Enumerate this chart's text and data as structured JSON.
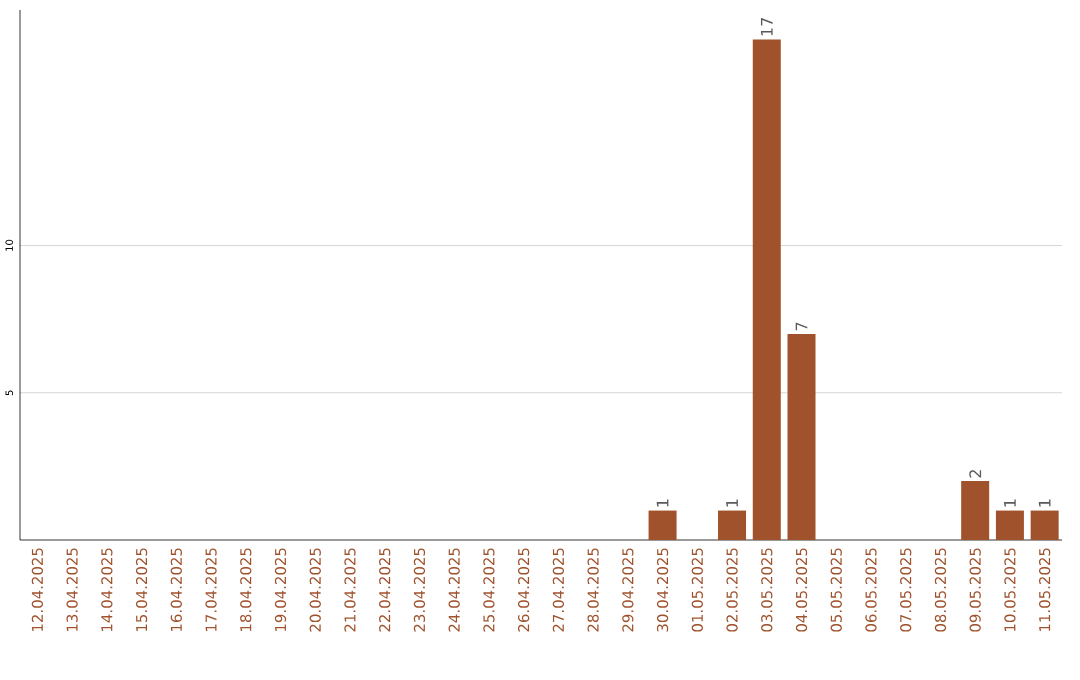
{
  "chart_data": {
    "type": "bar",
    "categories": [
      "12.04.2025",
      "13.04.2025",
      "14.04.2025",
      "15.04.2025",
      "16.04.2025",
      "17.04.2025",
      "18.04.2025",
      "19.04.2025",
      "20.04.2025",
      "21.04.2025",
      "22.04.2025",
      "23.04.2025",
      "24.04.2025",
      "25.04.2025",
      "26.04.2025",
      "27.04.2025",
      "28.04.2025",
      "29.04.2025",
      "30.04.2025",
      "01.05.2025",
      "02.05.2025",
      "03.05.2025",
      "04.05.2025",
      "05.05.2025",
      "06.05.2025",
      "07.05.2025",
      "08.05.2025",
      "09.05.2025",
      "10.05.2025",
      "11.05.2025"
    ],
    "values": [
      0,
      0,
      0,
      0,
      0,
      0,
      0,
      0,
      0,
      0,
      0,
      0,
      0,
      0,
      0,
      0,
      0,
      0,
      1,
      0,
      1,
      17,
      7,
      0,
      0,
      0,
      0,
      2,
      1,
      1
    ],
    "value_labels": [
      null,
      null,
      null,
      null,
      null,
      null,
      null,
      null,
      null,
      null,
      null,
      null,
      null,
      null,
      null,
      null,
      null,
      null,
      "1",
      null,
      "1",
      "17",
      "7",
      null,
      null,
      null,
      null,
      "2",
      "1",
      "1"
    ],
    "color": "#a0522d",
    "ylim": [
      0,
      18
    ],
    "yticks": [
      5,
      10
    ],
    "grid": "y"
  }
}
